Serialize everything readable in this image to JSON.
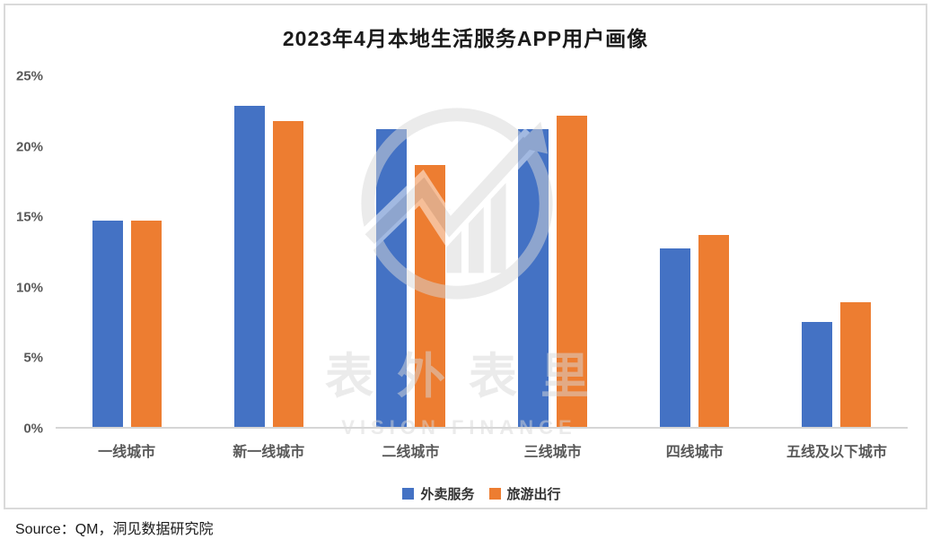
{
  "title": "2023年4月本地生活服务APP用户画像",
  "source": "Source：QM，洞见数据研究院",
  "watermark": {
    "cn": "表外表里",
    "en": "VISION FINANCE"
  },
  "legend": [
    {
      "label": "外卖服务",
      "color": "#4472C4"
    },
    {
      "label": "旅游出行",
      "color": "#ED7D31"
    }
  ],
  "chart_data": {
    "type": "bar",
    "title": "2023年4月本地生活服务APP用户画像",
    "categories": [
      "一线城市",
      "新一线城市",
      "二线城市",
      "三线城市",
      "四线城市",
      "五线及以下城市"
    ],
    "series": [
      {
        "name": "外卖服务",
        "color": "#4472C4",
        "values": [
          14.7,
          22.9,
          21.2,
          21.2,
          12.7,
          7.5
        ]
      },
      {
        "name": "旅游出行",
        "color": "#ED7D31",
        "values": [
          14.7,
          21.8,
          18.7,
          22.2,
          13.7,
          8.9
        ]
      }
    ],
    "xlabel": "",
    "ylabel": "",
    "ylim": [
      0,
      25
    ],
    "yticks": [
      "0%",
      "5%",
      "10%",
      "15%",
      "20%",
      "25%"
    ],
    "grid": false,
    "legend_position": "bottom"
  }
}
